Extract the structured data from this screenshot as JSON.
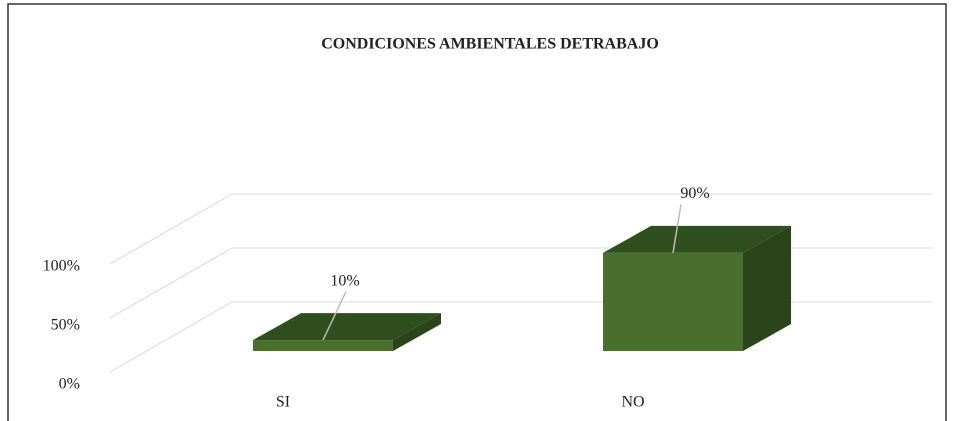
{
  "chart_data": {
    "type": "bar3d",
    "title": "CONDICIONES AMBIENTALES DETRABAJO",
    "categories": [
      "SI",
      "NO"
    ],
    "values": [
      10,
      90
    ],
    "value_labels": [
      "10%",
      "90%"
    ],
    "color": "#4a6e2c",
    "ylim": [
      0,
      100
    ],
    "yticks": [
      {
        "value": 0,
        "label": "0%"
      },
      {
        "value": 50,
        "label": "50%"
      },
      {
        "value": 100,
        "label": "100%"
      }
    ],
    "grid": true
  }
}
